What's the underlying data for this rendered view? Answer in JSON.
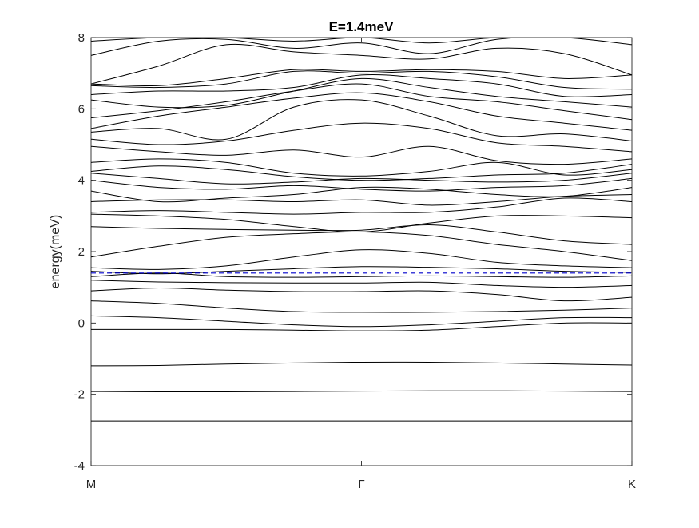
{
  "chart_data": {
    "type": "line",
    "title": "E=1.4meV",
    "xlabel": "",
    "ylabel": "energy(meV)",
    "ylim": [
      -4,
      8
    ],
    "yticks": [
      "-4",
      "-2",
      "0",
      "2",
      "4",
      "6",
      "8"
    ],
    "xlim": [
      0,
      2
    ],
    "xticks": [
      {
        "x": 0,
        "label": "M"
      },
      {
        "x": 1,
        "label": "Γ"
      },
      {
        "x": 2,
        "label": "K"
      }
    ],
    "grid": false,
    "reference_line": {
      "y": 1.4,
      "color": "#0000cc",
      "style": "dashed"
    },
    "band_color": "#000000",
    "x": [
      0,
      0.25,
      0.5,
      0.75,
      1,
      1.25,
      1.5,
      1.75,
      2
    ],
    "series": [
      {
        "values": [
          -2.75,
          -2.75,
          -2.75,
          -2.75,
          -2.75,
          -2.75,
          -2.75,
          -2.75,
          -2.75
        ]
      },
      {
        "values": [
          -1.92,
          -1.93,
          -1.93,
          -1.92,
          -1.91,
          -1.9,
          -1.9,
          -1.91,
          -1.92
        ]
      },
      {
        "values": [
          -1.2,
          -1.19,
          -1.15,
          -1.12,
          -1.1,
          -1.1,
          -1.12,
          -1.15,
          -1.18
        ]
      },
      {
        "values": [
          -0.18,
          -0.18,
          -0.18,
          -0.2,
          -0.22,
          -0.2,
          -0.1,
          0.0,
          0.0
        ]
      },
      {
        "values": [
          0.2,
          0.15,
          0.05,
          -0.05,
          -0.1,
          -0.05,
          0.05,
          0.15,
          0.15
        ]
      },
      {
        "values": [
          0.62,
          0.55,
          0.42,
          0.32,
          0.3,
          0.3,
          0.32,
          0.36,
          0.42
        ]
      },
      {
        "values": [
          0.9,
          0.98,
          0.92,
          0.88,
          0.88,
          0.9,
          0.8,
          0.62,
          0.72
        ]
      },
      {
        "values": [
          1.2,
          1.15,
          1.13,
          1.12,
          1.12,
          1.14,
          1.05,
          1.0,
          1.05
        ]
      },
      {
        "values": [
          1.3,
          1.4,
          1.3,
          1.28,
          1.3,
          1.32,
          1.3,
          1.28,
          1.32
        ]
      },
      {
        "values": [
          1.45,
          1.38,
          1.45,
          1.52,
          1.58,
          1.56,
          1.52,
          1.45,
          1.42
        ]
      },
      {
        "values": [
          1.55,
          1.5,
          1.6,
          1.85,
          2.05,
          1.95,
          1.7,
          1.6,
          1.55
        ]
      },
      {
        "values": [
          1.85,
          2.15,
          2.4,
          2.5,
          2.55,
          2.45,
          2.2,
          2.0,
          1.75
        ]
      },
      {
        "values": [
          2.7,
          2.65,
          2.62,
          2.6,
          2.6,
          2.75,
          2.55,
          2.3,
          2.2
        ]
      },
      {
        "values": [
          3.05,
          3.0,
          2.9,
          2.7,
          2.55,
          2.8,
          3.0,
          3.0,
          2.95
        ]
      },
      {
        "values": [
          3.1,
          3.15,
          3.1,
          3.05,
          3.1,
          3.1,
          3.25,
          3.5,
          3.4
        ]
      },
      {
        "values": [
          3.4,
          3.45,
          3.45,
          3.4,
          3.45,
          3.3,
          3.4,
          3.55,
          3.6
        ]
      },
      {
        "values": [
          3.7,
          3.4,
          3.5,
          3.6,
          3.8,
          3.75,
          3.6,
          3.55,
          3.8
        ]
      },
      {
        "values": [
          4.0,
          3.8,
          3.75,
          3.85,
          3.75,
          3.7,
          3.8,
          3.85,
          4.05
        ]
      },
      {
        "values": [
          4.2,
          4.05,
          3.9,
          3.95,
          4.05,
          4.0,
          3.95,
          4.0,
          4.2
        ]
      },
      {
        "values": [
          4.25,
          4.4,
          4.3,
          4.1,
          4.0,
          4.05,
          4.15,
          4.2,
          4.45
        ]
      },
      {
        "values": [
          4.5,
          4.6,
          4.5,
          4.2,
          4.12,
          4.25,
          4.5,
          4.15,
          4.3
        ]
      },
      {
        "values": [
          4.95,
          4.8,
          4.7,
          4.85,
          4.65,
          4.95,
          4.55,
          4.45,
          4.6
        ]
      },
      {
        "values": [
          5.15,
          5.0,
          5.1,
          5.4,
          5.6,
          5.45,
          5.05,
          4.95,
          4.8
        ]
      },
      {
        "values": [
          5.35,
          5.45,
          5.15,
          6.05,
          6.25,
          5.8,
          5.25,
          5.3,
          5.1
        ]
      },
      {
        "values": [
          5.45,
          5.8,
          6.05,
          6.3,
          6.45,
          6.2,
          5.8,
          5.6,
          5.4
        ]
      },
      {
        "values": [
          5.75,
          5.95,
          6.2,
          6.5,
          6.7,
          6.35,
          6.2,
          5.95,
          5.7
        ]
      },
      {
        "values": [
          6.25,
          6.05,
          6.1,
          6.5,
          6.85,
          6.6,
          6.35,
          6.2,
          6.05
        ]
      },
      {
        "values": [
          6.4,
          6.5,
          6.5,
          6.6,
          6.95,
          6.85,
          6.7,
          6.35,
          6.4
        ]
      },
      {
        "values": [
          6.65,
          6.6,
          6.7,
          7.05,
          7.0,
          7.05,
          6.9,
          6.6,
          6.55
        ]
      },
      {
        "values": [
          6.7,
          6.65,
          6.85,
          7.1,
          7.05,
          7.1,
          7.05,
          6.85,
          6.95
        ]
      },
      {
        "values": [
          6.7,
          7.2,
          7.8,
          7.6,
          7.5,
          7.4,
          7.7,
          7.55,
          6.95
        ]
      },
      {
        "values": [
          7.5,
          7.9,
          7.95,
          7.7,
          7.85,
          7.55,
          7.95,
          8.0,
          7.8
        ]
      },
      {
        "values": [
          7.9,
          8.0,
          8.0,
          7.9,
          8.0,
          7.85,
          8.0,
          8.0,
          8.0
        ]
      }
    ]
  }
}
